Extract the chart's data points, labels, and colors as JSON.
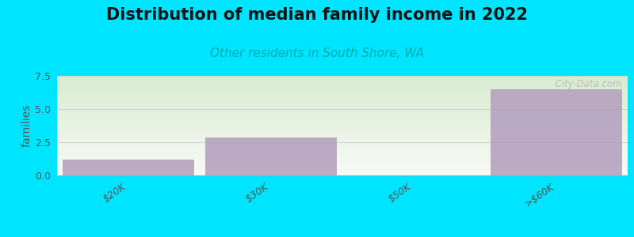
{
  "title": "Distribution of median family income in 2022",
  "subtitle": "Other residents in South Shore, WA",
  "categories": [
    "$20K",
    "$30K",
    "$50K",
    ">$60K"
  ],
  "values": [
    1.2,
    2.85,
    0,
    6.5
  ],
  "bar_color": "#b39dbd",
  "bar_alpha": 0.85,
  "bg_color": "#00e5ff",
  "ylabel": "families",
  "ylim": [
    0,
    7.5
  ],
  "yticks": [
    0,
    2.5,
    5,
    7.5
  ],
  "title_fontsize": 15,
  "subtitle_fontsize": 11,
  "subtitle_color": "#00aaaa",
  "watermark": "  City-Data.com",
  "bar_width": 0.92,
  "gradient_top": "#d8ecd0",
  "gradient_bottom": "#f8faf5",
  "grid_color": "#cccccc"
}
